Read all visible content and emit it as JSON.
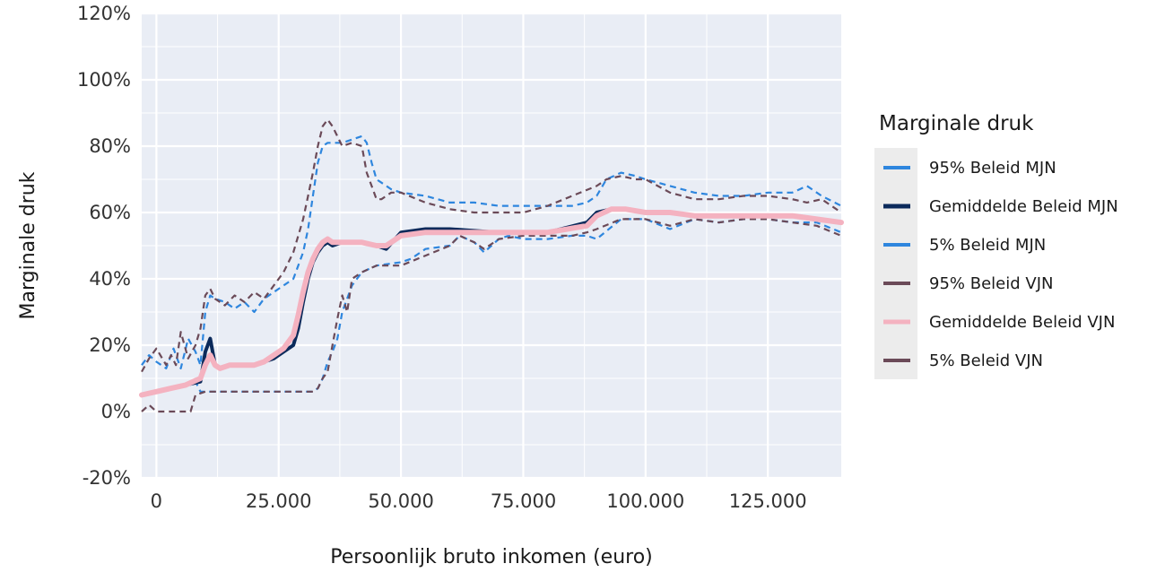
{
  "chart_data": {
    "type": "line",
    "xlabel": "Persoonlijk bruto inkomen (euro)",
    "ylabel": "Marginale druk",
    "xlim": [
      -3000,
      140000
    ],
    "ylim": [
      -20,
      120
    ],
    "x_ticks": [
      0,
      25000,
      50000,
      75000,
      100000,
      125000
    ],
    "x_tick_labels": [
      "0",
      "25.000",
      "50.000",
      "75.000",
      "100.000",
      "125.000"
    ],
    "y_ticks": [
      -20,
      0,
      20,
      40,
      60,
      80,
      100,
      120
    ],
    "y_tick_labels": [
      "-20%",
      "0%",
      "20%",
      "40%",
      "60%",
      "80%",
      "100%",
      "120%"
    ],
    "grid": true,
    "legend": {
      "title": "Marginale druk",
      "placement": "right"
    },
    "colors": {
      "mjn_band": "#2e86de",
      "mjn_mean": "#0b2a5b",
      "vjn_band": "#6b4a58",
      "vjn_mean": "#f4b2c0",
      "panel": "#e9edf5"
    },
    "series": [
      {
        "name": "95% Beleid MJN",
        "color": "#2e86de",
        "dash": "dashed",
        "width": 2.2,
        "x": [
          -3000,
          -1500,
          0,
          2000,
          3500,
          5000,
          6500,
          8000,
          9000,
          10000,
          11000,
          12000,
          14000,
          16000,
          18000,
          20000,
          22000,
          24000,
          26000,
          28000,
          30000,
          31000,
          32000,
          33000,
          34000,
          35000,
          36000,
          38000,
          40000,
          42000,
          43000,
          44000,
          45000,
          46000,
          48000,
          50000,
          55000,
          60000,
          65000,
          70000,
          75000,
          80000,
          85000,
          88000,
          90000,
          92000,
          95000,
          98000,
          100000,
          105000,
          110000,
          115000,
          120000,
          125000,
          130000,
          133000,
          136000,
          140000
        ],
        "y": [
          14,
          17,
          15,
          13,
          19,
          13,
          22,
          18,
          14,
          30,
          35,
          34,
          33,
          31,
          33,
          30,
          34,
          36,
          38,
          40,
          48,
          55,
          65,
          75,
          80,
          81,
          81,
          81,
          82,
          83,
          81,
          75,
          70,
          69,
          67,
          66,
          65,
          63,
          63,
          62,
          62,
          62,
          62,
          63,
          65,
          70,
          72,
          71,
          70,
          68,
          66,
          65,
          65,
          66,
          66,
          68,
          65,
          62
        ]
      },
      {
        "name": "Gemiddelde Beleid MJN",
        "color": "#0b2a5b",
        "dash": "solid",
        "width": 4,
        "x": [
          -3000,
          0,
          3000,
          6000,
          9000,
          10000,
          11000,
          12000,
          13000,
          15000,
          18000,
          20000,
          22000,
          24000,
          26000,
          28000,
          29000,
          30000,
          31000,
          32000,
          33000,
          34000,
          35000,
          36000,
          38000,
          40000,
          42000,
          45000,
          47000,
          50000,
          55000,
          60000,
          70000,
          80000,
          88000,
          90000,
          93000,
          96000,
          100000,
          105000,
          110000,
          120000,
          130000,
          140000
        ],
        "y": [
          5,
          6,
          7,
          8,
          9,
          18,
          22,
          14,
          13,
          14,
          14,
          14,
          15,
          16,
          18,
          20,
          25,
          33,
          40,
          45,
          48,
          50,
          51,
          50,
          51,
          51,
          51,
          50,
          49,
          54,
          55,
          55,
          54,
          54,
          57,
          60,
          61,
          61,
          60,
          60,
          59,
          59,
          59,
          57
        ]
      },
      {
        "name": "5% Beleid MJN",
        "color": "#2e86de",
        "dash": "dashed",
        "width": 2.2,
        "x": [
          -3000,
          0,
          3000,
          6000,
          8000,
          9000,
          15000,
          20000,
          25000,
          28000,
          30000,
          31000,
          32000,
          33000,
          34000,
          35000,
          36000,
          37000,
          38000,
          40000,
          42000,
          45000,
          50000,
          52000,
          55000,
          60000,
          62000,
          65000,
          67000,
          70000,
          72000,
          75000,
          80000,
          85000,
          88000,
          90000,
          95000,
          100000,
          105000,
          110000,
          115000,
          120000,
          125000,
          130000,
          135000,
          140000
        ],
        "y": [
          5,
          6,
          7,
          8,
          9,
          6,
          6,
          6,
          6,
          6,
          6,
          6,
          6,
          7,
          10,
          15,
          18,
          22,
          30,
          38,
          42,
          44,
          45,
          46,
          49,
          50,
          53,
          51,
          48,
          52,
          53,
          52,
          52,
          53,
          53,
          52,
          58,
          58,
          55,
          58,
          57,
          58,
          58,
          57,
          57,
          54
        ]
      },
      {
        "name": "95% Beleid VJN",
        "color": "#6b4a58",
        "dash": "dashed",
        "width": 2.2,
        "x": [
          -3000,
          -1500,
          0,
          2000,
          3000,
          4000,
          5000,
          6500,
          8000,
          9000,
          10000,
          11000,
          12000,
          14000,
          16000,
          18000,
          20000,
          22000,
          24000,
          26000,
          28000,
          30000,
          31000,
          32000,
          33000,
          34000,
          35000,
          36000,
          38000,
          40000,
          42000,
          43000,
          44000,
          45000,
          46000,
          48000,
          50000,
          55000,
          60000,
          65000,
          70000,
          75000,
          80000,
          85000,
          90000,
          92000,
          95000,
          98000,
          100000,
          105000,
          110000,
          115000,
          120000,
          125000,
          130000,
          133000,
          136000,
          140000
        ],
        "y": [
          12,
          16,
          19,
          14,
          17,
          14,
          24,
          16,
          20,
          25,
          35,
          37,
          34,
          32,
          35,
          33,
          36,
          34,
          38,
          42,
          48,
          58,
          65,
          72,
          80,
          86,
          88,
          86,
          80,
          81,
          80,
          72,
          68,
          64,
          64,
          66,
          66,
          63,
          61,
          60,
          60,
          60,
          62,
          65,
          68,
          70,
          71,
          70,
          70,
          66,
          64,
          64,
          65,
          65,
          64,
          63,
          64,
          60
        ]
      },
      {
        "name": "Gemiddelde Beleid VJN",
        "color": "#f4b2c0",
        "dash": "solid",
        "width": 6,
        "x": [
          -3000,
          0,
          3000,
          6000,
          9000,
          10000,
          11000,
          12000,
          13000,
          15000,
          18000,
          20000,
          22000,
          24000,
          26000,
          28000,
          29000,
          30000,
          31000,
          32000,
          33000,
          34000,
          35000,
          36000,
          38000,
          40000,
          42000,
          45000,
          47000,
          50000,
          55000,
          60000,
          70000,
          80000,
          88000,
          90000,
          93000,
          96000,
          100000,
          105000,
          110000,
          120000,
          130000,
          140000
        ],
        "y": [
          5,
          6,
          7,
          8,
          10,
          14,
          17,
          14,
          13,
          14,
          14,
          14,
          15,
          17,
          19,
          23,
          29,
          36,
          42,
          46,
          49,
          51,
          52,
          51,
          51,
          51,
          51,
          50,
          50,
          53,
          54,
          54,
          54,
          54,
          56,
          59,
          61,
          61,
          60,
          60,
          59,
          59,
          59,
          57
        ]
      },
      {
        "name": "5% Beleid VJN",
        "color": "#6b4a58",
        "dash": "dashed",
        "width": 2.2,
        "x": [
          -3000,
          -1500,
          0,
          1000,
          2000,
          5000,
          7000,
          8000,
          10000,
          12000,
          15000,
          20000,
          25000,
          28000,
          30000,
          31000,
          32000,
          33000,
          34000,
          35000,
          36000,
          37000,
          38000,
          39000,
          40000,
          42000,
          45000,
          50000,
          55000,
          60000,
          62000,
          65000,
          67000,
          70000,
          75000,
          80000,
          85000,
          88000,
          90000,
          95000,
          100000,
          105000,
          110000,
          115000,
          120000,
          125000,
          130000,
          135000,
          140000
        ],
        "y": [
          0,
          2,
          0,
          0,
          0,
          0,
          0,
          5,
          6,
          6,
          6,
          6,
          6,
          6,
          6,
          6,
          6,
          7,
          10,
          12,
          20,
          28,
          35,
          30,
          40,
          42,
          44,
          44,
          47,
          50,
          53,
          51,
          49,
          52,
          53,
          53,
          53,
          54,
          55,
          58,
          58,
          56,
          58,
          57,
          58,
          58,
          57,
          56,
          53
        ]
      }
    ]
  }
}
